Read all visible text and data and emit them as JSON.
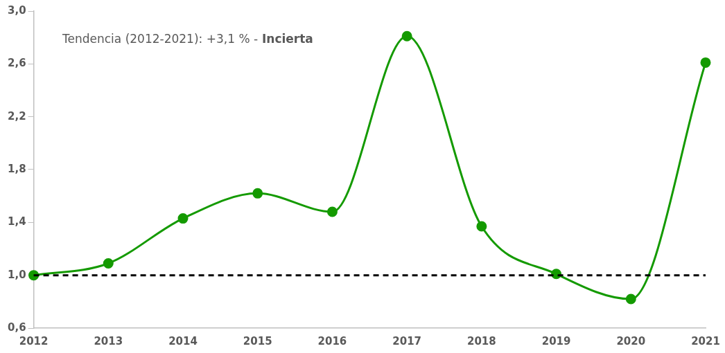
{
  "chart_data": {
    "type": "line",
    "categories": [
      "2012",
      "2013",
      "2014",
      "2015",
      "2016",
      "2017",
      "2018",
      "2019",
      "2020",
      "2021"
    ],
    "series": [
      {
        "color": "#149a00",
        "values": [
          1.0,
          1.09,
          1.43,
          1.62,
          1.48,
          2.81,
          1.37,
          1.01,
          0.82,
          2.61
        ]
      }
    ],
    "ylim": [
      0.6,
      3.0
    ],
    "yticks": [
      {
        "value": 0.6,
        "label": "0,6"
      },
      {
        "value": 1.0,
        "label": "1,0"
      },
      {
        "value": 1.4,
        "label": "1,4"
      },
      {
        "value": 1.8,
        "label": "1,8"
      },
      {
        "value": 2.2,
        "label": "2,2"
      },
      {
        "value": 2.6,
        "label": "2,6"
      },
      {
        "value": 3.0,
        "label": "3,0"
      }
    ],
    "ref_lines": [
      {
        "axis": "y",
        "value": 1.0,
        "color": "#000000",
        "line_style": "dashed"
      }
    ],
    "annotations": [
      "Tendencia (2012-2021): +3,1 % -",
      "Incierta"
    ],
    "grid": false,
    "legend": false,
    "marker": "circle",
    "line_style": "solid"
  }
}
